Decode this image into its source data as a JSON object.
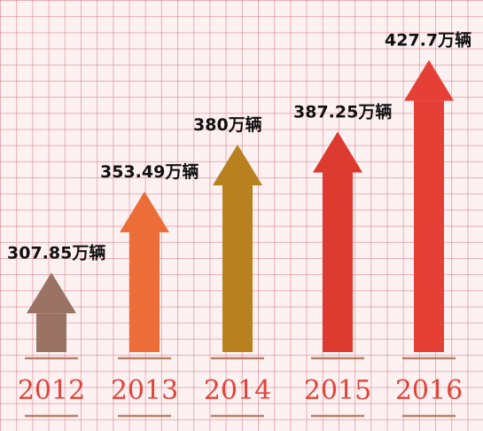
{
  "chart_data": {
    "type": "bar",
    "style": "upward arrows on pink grid paper",
    "categories": [
      "2012",
      "2013",
      "2014",
      "2015",
      "2016"
    ],
    "values": [
      307.85,
      353.49,
      380,
      387.25,
      427.7
    ],
    "unit": "万辆",
    "data_labels": [
      "307.85万辆",
      "353.49万辆",
      "380万辆",
      "387.25万辆",
      "427.7万辆"
    ],
    "colors": [
      "#9a7364",
      "#ec6d37",
      "#b8801f",
      "#dc3a2e",
      "#e63f36"
    ],
    "year_label_color": "#e0443a",
    "grid": true,
    "legend": "none",
    "title": "",
    "xlabel": "",
    "ylabel": ""
  }
}
